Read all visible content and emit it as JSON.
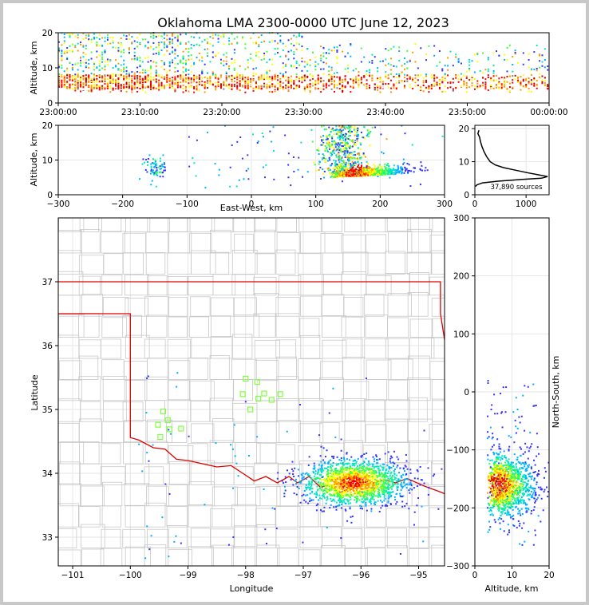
{
  "chart_data": {
    "title": "Oklahoma LMA 2300-0000 UTC June 12, 2023",
    "panels": [
      {
        "type": "heatmap",
        "name": "time-height",
        "xlabel": "",
        "ylabel": "Altitude, km",
        "x_tick_labels": [
          "23:00:00",
          "23:10:00",
          "23:20:00",
          "23:30:00",
          "23:40:00",
          "23:50:00",
          "00:00:00"
        ],
        "x_range_minutes": [
          0,
          60
        ],
        "ylim": [
          0,
          20
        ],
        "y_ticks": [
          0,
          10,
          20
        ]
      },
      {
        "type": "heatmap",
        "name": "east-west-altitude",
        "xlabel": "East-West, km",
        "ylabel": "Altitude, km",
        "xlim": [
          -300,
          300
        ],
        "x_ticks": [
          -300,
          -200,
          -100,
          0,
          100,
          200,
          300
        ],
        "ylim": [
          0,
          20
        ],
        "y_ticks": [
          0,
          10,
          20
        ]
      },
      {
        "type": "line",
        "name": "altitude-histogram",
        "xlim": [
          0,
          1450
        ],
        "x_ticks": [
          0,
          1000
        ],
        "ylim": [
          0,
          21
        ],
        "y_ticks": [
          0,
          10,
          20
        ],
        "annotation": "37,890 sources",
        "profile": [
          {
            "count": 80,
            "alt": 19.5
          },
          {
            "count": 60,
            "alt": 18.5
          },
          {
            "count": 90,
            "alt": 17.5
          },
          {
            "count": 110,
            "alt": 16.0
          },
          {
            "count": 140,
            "alt": 14.5
          },
          {
            "count": 180,
            "alt": 13.0
          },
          {
            "count": 230,
            "alt": 11.5
          },
          {
            "count": 300,
            "alt": 10.0
          },
          {
            "count": 400,
            "alt": 9.0
          },
          {
            "count": 560,
            "alt": 8.2
          },
          {
            "count": 800,
            "alt": 7.4
          },
          {
            "count": 1050,
            "alt": 6.6
          },
          {
            "count": 1250,
            "alt": 6.0
          },
          {
            "count": 1420,
            "alt": 5.5
          },
          {
            "count": 1300,
            "alt": 5.0
          },
          {
            "count": 900,
            "alt": 4.6
          },
          {
            "count": 450,
            "alt": 4.1
          },
          {
            "count": 150,
            "alt": 3.6
          },
          {
            "count": 40,
            "alt": 3.0
          },
          {
            "count": 10,
            "alt": 2.5
          }
        ]
      },
      {
        "type": "heatmap",
        "name": "plan-view",
        "xlabel": "Longitude",
        "ylabel": "Latitude",
        "xlim": [
          -101.25,
          -94.55
        ],
        "x_ticks": [
          -101,
          -100,
          -99,
          -98,
          -97,
          -96,
          -95
        ],
        "ylim": [
          32.55,
          38.0
        ],
        "y_ticks": [
          33,
          34,
          35,
          36,
          37
        ],
        "stations": [
          {
            "lon": -98.0,
            "lat": 35.48
          },
          {
            "lon": -97.8,
            "lat": 35.43
          },
          {
            "lon": -98.05,
            "lat": 35.24
          },
          {
            "lon": -97.68,
            "lat": 35.25
          },
          {
            "lon": -97.55,
            "lat": 35.15
          },
          {
            "lon": -97.4,
            "lat": 35.24
          },
          {
            "lon": -97.92,
            "lat": 35.0
          },
          {
            "lon": -97.78,
            "lat": 35.17
          },
          {
            "lon": -99.43,
            "lat": 34.97
          },
          {
            "lon": -99.52,
            "lat": 34.76
          },
          {
            "lon": -99.35,
            "lat": 34.83
          },
          {
            "lon": -99.32,
            "lat": 34.69
          },
          {
            "lon": -99.12,
            "lat": 34.7
          },
          {
            "lon": -99.48,
            "lat": 34.57
          }
        ]
      },
      {
        "type": "heatmap",
        "name": "altitude-north-south",
        "xlabel": "Altitude, km",
        "ylabel": "North-South, km",
        "xlim": [
          0,
          20
        ],
        "x_ticks": [
          0,
          10,
          20
        ],
        "ylim": [
          -300,
          300
        ],
        "y_ticks": [
          -300,
          -200,
          -100,
          0,
          100,
          200,
          300
        ]
      }
    ],
    "colors": {
      "border_red": "#e00000",
      "county_lines": "#c8c8c8",
      "station_marker": "#80ff40",
      "density_scale": [
        "#3333ff",
        "#00b0ff",
        "#00e8c0",
        "#40ff40",
        "#ffff00",
        "#ff9900",
        "#ff0000",
        "#c00000",
        "#808080",
        "#ffffff"
      ]
    }
  }
}
